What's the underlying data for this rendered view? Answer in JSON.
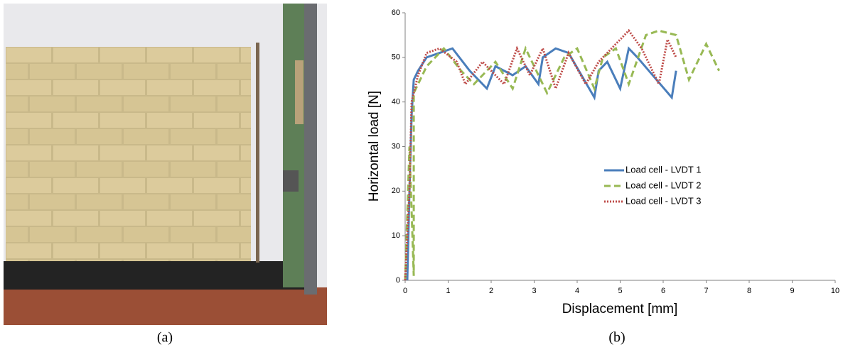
{
  "captions": [
    "(a)",
    "(b)"
  ],
  "chart_data": {
    "type": "line",
    "x_label": "Displacement [mm]",
    "y_label": "Horizontal load [N]",
    "xlim": [
      0,
      10
    ],
    "ylim": [
      0,
      60
    ],
    "xticks": [
      0,
      1,
      2,
      3,
      4,
      5,
      6,
      7,
      8,
      9,
      10
    ],
    "yticks": [
      0,
      10,
      20,
      30,
      40,
      50,
      60
    ],
    "grid": false,
    "legend": "center",
    "series": [
      {
        "name": "Load cell - LVDT 1",
        "color": "#4a7ebb",
        "line_style": "solid",
        "x": [
          0.05,
          0.1,
          0.15,
          0.2,
          0.3,
          0.5,
          0.8,
          1.1,
          1.5,
          1.9,
          2.1,
          2.5,
          2.8,
          3.1,
          3.2,
          3.5,
          3.8,
          4.4,
          4.5,
          4.7,
          5.0,
          5.2,
          5.4,
          6.2,
          6.3
        ],
        "values": [
          0,
          20,
          37,
          45,
          47,
          50,
          51,
          52,
          47,
          43,
          48,
          46,
          48,
          44,
          50,
          52,
          51,
          41,
          47,
          49,
          43,
          52,
          50,
          41,
          47
        ]
      },
      {
        "name": "Load cell - LVDT 2",
        "color": "#98b954",
        "line_style": "dashed",
        "x": [
          0.0,
          0.1,
          0.2,
          0.2,
          0.5,
          0.9,
          1.3,
          1.6,
          2.1,
          2.5,
          2.8,
          3.3,
          3.7,
          4.0,
          4.4,
          4.6,
          4.9,
          5.2,
          5.6,
          5.9,
          6.3,
          6.6,
          7.0,
          7.3
        ],
        "values": [
          0,
          30,
          1,
          42,
          48,
          52,
          47,
          44,
          49,
          43,
          52,
          42,
          50,
          52,
          43,
          50,
          52,
          44,
          55,
          56,
          55,
          45,
          53,
          47
        ]
      },
      {
        "name": "Load cell - LVDT 3",
        "color": "#be4b48",
        "line_style": "dotted",
        "x": [
          0.0,
          0.1,
          0.15,
          0.3,
          0.5,
          0.8,
          1.2,
          1.4,
          1.8,
          2.3,
          2.6,
          2.9,
          3.2,
          3.5,
          3.8,
          4.2,
          4.5,
          4.9,
          5.2,
          5.5,
          5.9,
          6.1,
          6.3
        ],
        "values": [
          0,
          20,
          40,
          46,
          51,
          52,
          49,
          44,
          49,
          44,
          52,
          46,
          52,
          43,
          51,
          44,
          49,
          53,
          56,
          52,
          44,
          54,
          50
        ]
      }
    ]
  }
}
